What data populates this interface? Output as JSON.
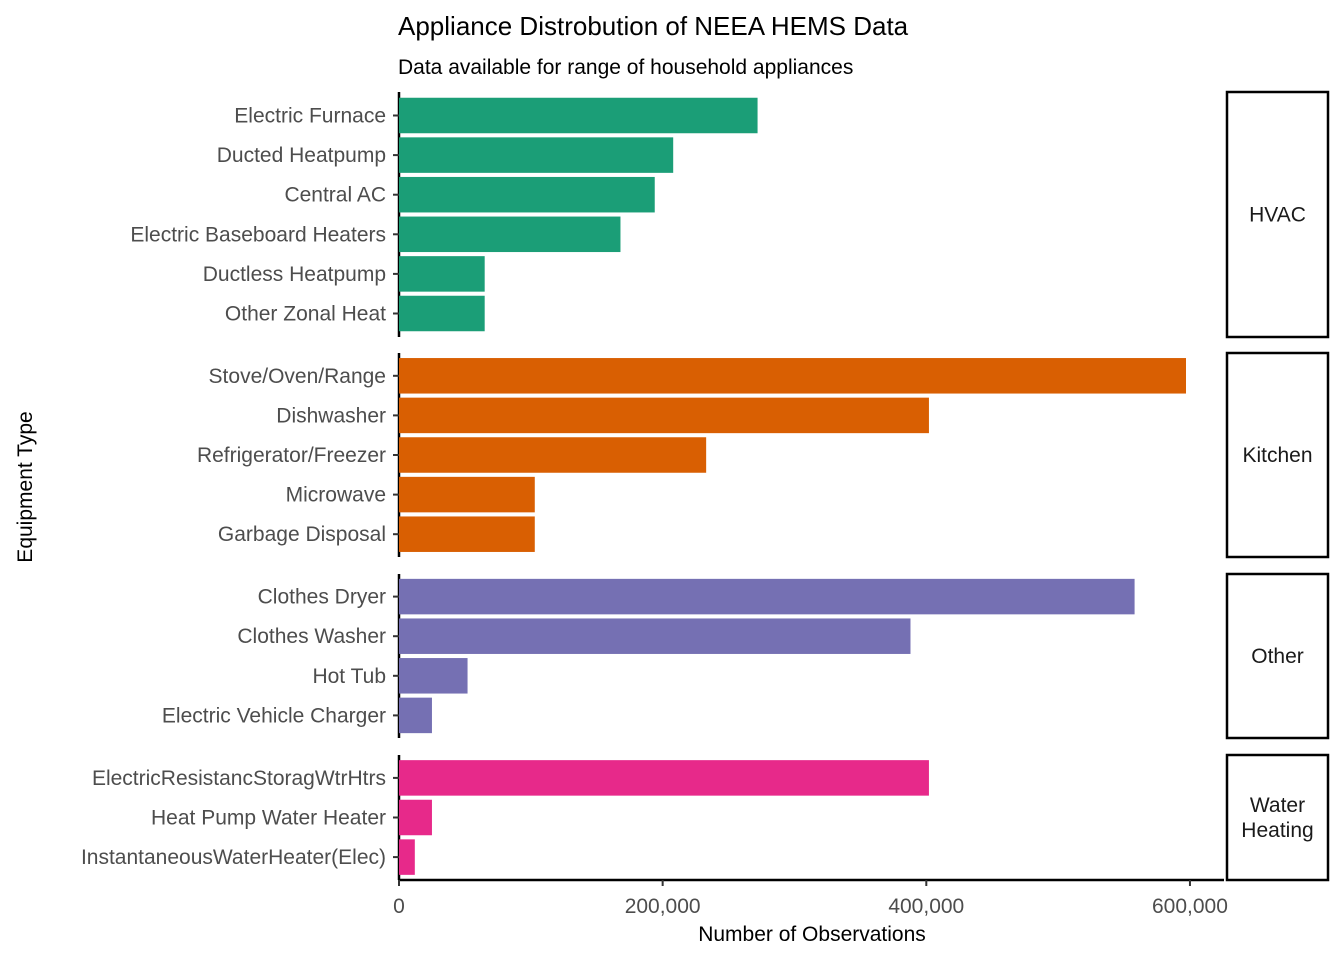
{
  "chart_data": {
    "type": "bar",
    "orientation": "horizontal",
    "title": "Appliance Distrobution of NEEA HEMS Data",
    "subtitle": "Data available for range of household appliances",
    "xlabel": "Number of Observations",
    "ylabel": "Equipment Type",
    "xlim": [
      0,
      620000
    ],
    "x_ticks": [
      0,
      200000,
      400000,
      600000
    ],
    "x_tick_labels": [
      "0",
      "200,000",
      "400,000",
      "600,000"
    ],
    "grid": false,
    "legend": "none",
    "facets": [
      {
        "name": "HVAC",
        "strip_lines": [
          "HVAC"
        ],
        "color": "#1b9e77",
        "categories": [
          "Electric Furnace",
          "Ducted Heatpump",
          "Central AC",
          "Electric Baseboard Heaters",
          "Ductless Heatpump",
          "Other Zonal Heat"
        ],
        "values": [
          272000,
          208000,
          194000,
          168000,
          65000,
          65000
        ]
      },
      {
        "name": "Kitchen",
        "strip_lines": [
          "Kitchen"
        ],
        "color": "#d95f02",
        "categories": [
          "Stove/Oven/Range",
          "Dishwasher",
          "Refrigerator/Freezer",
          "Microwave",
          "Garbage Disposal"
        ],
        "values": [
          597000,
          402000,
          233000,
          103000,
          103000
        ]
      },
      {
        "name": "Other",
        "strip_lines": [
          "Other"
        ],
        "color": "#7570b3",
        "categories": [
          "Clothes Dryer",
          "Clothes Washer",
          "Hot Tub",
          "Electric Vehicle Charger"
        ],
        "values": [
          558000,
          388000,
          52000,
          25000
        ]
      },
      {
        "name": "Water Heating",
        "strip_lines": [
          "Water",
          "Heating"
        ],
        "color": "#e7298a",
        "categories": [
          "ElectricResistancStoragWtrHtrs",
          "Heat Pump Water Heater",
          "InstantaneousWaterHeater(Elec)"
        ],
        "values": [
          402000,
          25000,
          12000
        ]
      }
    ]
  },
  "colors": {
    "hvac": "#1b9e77",
    "kitchen": "#d95f02",
    "other": "#7570b3",
    "water_heating": "#e7298a"
  }
}
